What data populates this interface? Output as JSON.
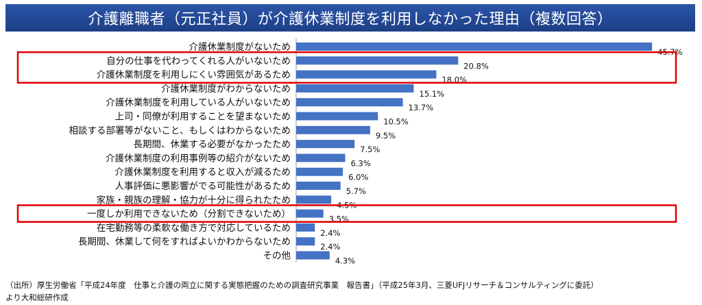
{
  "title": "介護離職者（元正社員）が介護休業制度を利用しなかった理由（複数回答）",
  "source_lines": [
    "（出所）厚生労働省「平成24年度　仕事と介護の両立に関する実態把握のための調査研究事業　報告書」（平成25年3月、三菱UFJリサーチ＆コンサルティングに委託）",
    "より大和総研作成"
  ],
  "colors": {
    "title_bg": "#1f4690",
    "bar": "#4472c4",
    "highlight_box": "#e00000",
    "axis": "#999999"
  },
  "chart_data": {
    "type": "bar",
    "orientation": "horizontal",
    "categories": [
      "介護休業制度がないため",
      "自分の仕事を代わってくれる人がいないため",
      "介護休業制度を利用しにくい雰囲気があるため",
      "介護休業制度がわからないため",
      "介護休業制度を利用している人がいないため",
      "上司・同僚が利用することを望まないため",
      "相談する部署等がないこと、もしくはわからないため",
      "長期間、休業する必要がなかったため",
      "介護休業制度の利用事例等の紹介がないため",
      "介護休業制度を利用すると収入が減るため",
      "人事評価に悪影響がでる可能性があるため",
      "家族・親族の理解・協力が十分に得られたため",
      "一度しか利用できないため（分割できないため）",
      "在宅勤務等の柔軟な働き方で対応しているため",
      "長期間、休業して何をすればよいかわからないため",
      "その他"
    ],
    "values": [
      45.7,
      20.8,
      18.0,
      15.1,
      13.7,
      10.5,
      9.5,
      7.5,
      6.3,
      6.0,
      5.7,
      4.5,
      3.5,
      2.4,
      2.4,
      4.3
    ],
    "value_labels": [
      "45.7%",
      "20.8%",
      "18.0%",
      "15.1%",
      "13.7%",
      "10.5%",
      "9.5%",
      "7.5%",
      "6.3%",
      "6.0%",
      "5.7%",
      "4.5%",
      "3.5%",
      "2.4%",
      "2.4%",
      "4.3%"
    ],
    "xlim": [
      0,
      50
    ],
    "highlight_groups": [
      [
        1,
        2
      ],
      [
        12
      ]
    ],
    "grid": false
  }
}
